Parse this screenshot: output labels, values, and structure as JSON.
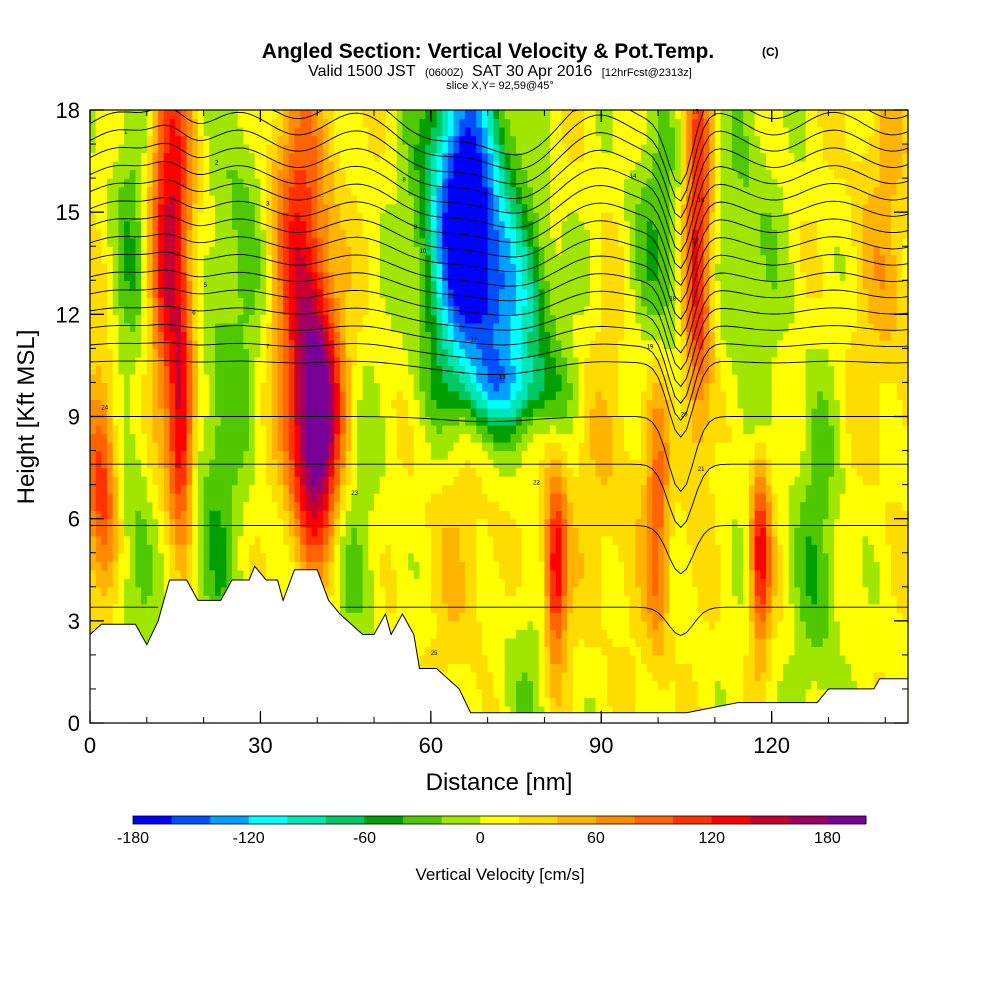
{
  "chart_data": {
    "type": "heatmap",
    "title": "Angled Section: Vertical Velocity & Pot.Temp.",
    "title_suffix": "(C)",
    "subtitle": {
      "part1": "Valid 1500 JST",
      "part2": "(0600Z)",
      "part3": "SAT 30 Apr 2016",
      "part4": "[12hrFcst@2313z]"
    },
    "slice_text": "slice X,Y= 92,59@45°",
    "xlabel": "Distance [nm]",
    "ylabel": "Height [Kft MSL]",
    "xlim": [
      0,
      144
    ],
    "ylim": [
      0,
      18
    ],
    "x_ticks": [
      "0",
      "30",
      "60",
      "90",
      "120"
    ],
    "y_ticks": [
      "0",
      "3",
      "6",
      "9",
      "12",
      "15",
      "18"
    ],
    "x_tick_values": [
      0,
      30,
      60,
      90,
      120
    ],
    "y_tick_values": [
      0,
      3,
      6,
      9,
      12,
      15,
      18
    ],
    "colorbar": {
      "label": "Vertical Velocity [cm/s]",
      "min": -180,
      "max": 200,
      "step": 20,
      "tick_labels": [
        "-180",
        "-120",
        "-60",
        "0",
        "60",
        "120",
        "180"
      ],
      "tick_values": [
        -180,
        -120,
        -60,
        0,
        60,
        120,
        180
      ],
      "colors": [
        "#0000ff",
        "#0050ff",
        "#00a0ff",
        "#00ffff",
        "#00e6b4",
        "#00c864",
        "#00a000",
        "#50c800",
        "#a0e600",
        "#ffff00",
        "#ffdc00",
        "#ffb400",
        "#ff8c00",
        "#ff6400",
        "#ff3200",
        "#ff0000",
        "#c80032",
        "#a00064",
        "#780096"
      ]
    },
    "velocity_field": {
      "background": 12,
      "features": [
        {
          "x": 14,
          "h": 14.5,
          "sx": 2.8,
          "sy": 4.0,
          "amp": 140
        },
        {
          "x": 16,
          "h": 8.5,
          "sx": 1.5,
          "sy": 2.2,
          "amp": 110
        },
        {
          "x": 2,
          "h": 7.0,
          "sx": 2.0,
          "sy": 2.5,
          "amp": 100
        },
        {
          "x": 40,
          "h": 8.5,
          "sx": 3.0,
          "sy": 2.5,
          "amp": 190
        },
        {
          "x": 38,
          "h": 12.0,
          "sx": 4.0,
          "sy": 3.5,
          "amp": 70
        },
        {
          "x": 36,
          "h": 15.5,
          "sx": 3.5,
          "sy": 3.0,
          "amp": 60
        },
        {
          "x": 66,
          "h": 15.5,
          "sx": 5.0,
          "sy": 3.0,
          "amp": -190
        },
        {
          "x": 72,
          "h": 12.0,
          "sx": 7.0,
          "sy": 2.2,
          "amp": -110
        },
        {
          "x": 74,
          "h": 9.8,
          "sx": 7.0,
          "sy": 0.8,
          "amp": -60
        },
        {
          "x": 82,
          "h": 4.5,
          "sx": 1.4,
          "sy": 2.0,
          "amp": 130
        },
        {
          "x": 118,
          "h": 5.0,
          "sx": 1.3,
          "sy": 2.0,
          "amp": 120
        },
        {
          "x": 107,
          "h": 14.0,
          "sx": 1.8,
          "sy": 4.0,
          "amp": 130
        },
        {
          "x": 100,
          "h": 6.0,
          "sx": 1.5,
          "sy": 3.0,
          "amp": 70
        },
        {
          "x": 8,
          "h": 14.5,
          "sx": 3.0,
          "sy": 3.5,
          "amp": -50
        },
        {
          "x": 22,
          "h": 6.0,
          "sx": 3.0,
          "sy": 4.0,
          "amp": -45
        },
        {
          "x": 27,
          "h": 14.0,
          "sx": 4.0,
          "sy": 4.0,
          "amp": -40
        },
        {
          "x": 8,
          "h": 4.0,
          "sx": 2.5,
          "sy": 3.0,
          "amp": -40
        },
        {
          "x": 45,
          "h": 5.5,
          "sx": 4.0,
          "sy": 3.0,
          "amp": -35
        },
        {
          "x": 100,
          "h": 14.0,
          "sx": 4.0,
          "sy": 3.0,
          "amp": -50
        },
        {
          "x": 128,
          "h": 5.0,
          "sx": 3.0,
          "sy": 3.5,
          "amp": -45
        },
        {
          "x": 116,
          "h": 14.0,
          "sx": 4.0,
          "sy": 4.0,
          "amp": -35
        },
        {
          "x": 140,
          "h": 14.0,
          "sx": 4.0,
          "sy": 4.0,
          "amp": 35
        },
        {
          "x": 92,
          "h": 8.0,
          "sx": 6.0,
          "sy": 4.0,
          "amp": 25
        },
        {
          "x": 76,
          "h": 1.5,
          "sx": 4.0,
          "sy": 2.0,
          "amp": -25
        },
        {
          "x": 66,
          "h": 5.0,
          "sx": 5.0,
          "sy": 3.0,
          "amp": 25
        }
      ]
    },
    "terrain": [
      [
        0,
        2.6
      ],
      [
        2,
        2.9
      ],
      [
        8,
        2.9
      ],
      [
        10,
        2.3
      ],
      [
        12,
        3.0
      ],
      [
        14,
        4.2
      ],
      [
        17,
        4.2
      ],
      [
        19,
        3.6
      ],
      [
        20,
        3.6
      ],
      [
        23,
        3.6
      ],
      [
        25,
        4.2
      ],
      [
        28,
        4.2
      ],
      [
        29,
        4.6
      ],
      [
        31,
        4.2
      ],
      [
        33,
        4.2
      ],
      [
        34,
        3.6
      ],
      [
        36,
        4.5
      ],
      [
        40,
        4.5
      ],
      [
        42,
        3.6
      ],
      [
        44,
        3.2
      ],
      [
        46,
        2.9
      ],
      [
        48,
        2.6
      ],
      [
        50,
        2.6
      ],
      [
        52,
        3.2
      ],
      [
        53,
        2.6
      ],
      [
        55,
        3.2
      ],
      [
        57,
        2.6
      ],
      [
        58,
        1.6
      ],
      [
        61,
        1.6
      ],
      [
        63,
        1.3
      ],
      [
        65,
        1.0
      ],
      [
        67,
        0.3
      ],
      [
        70,
        0.3
      ],
      [
        105,
        0.3
      ],
      [
        114,
        0.6
      ],
      [
        128,
        0.6
      ],
      [
        130,
        1.0
      ],
      [
        138,
        1.0
      ],
      [
        139,
        1.3
      ],
      [
        144,
        1.3
      ]
    ],
    "theta_contour_labels": [
      "1",
      "2",
      "3",
      "4",
      "5",
      "6",
      "7",
      "8",
      "9",
      "10",
      "11",
      "12",
      "13",
      "14",
      "15",
      "16",
      "17",
      "18",
      "19",
      "20",
      "21",
      "22",
      "23",
      "24",
      "25",
      "26",
      "27",
      "28",
      "29",
      "30"
    ]
  }
}
